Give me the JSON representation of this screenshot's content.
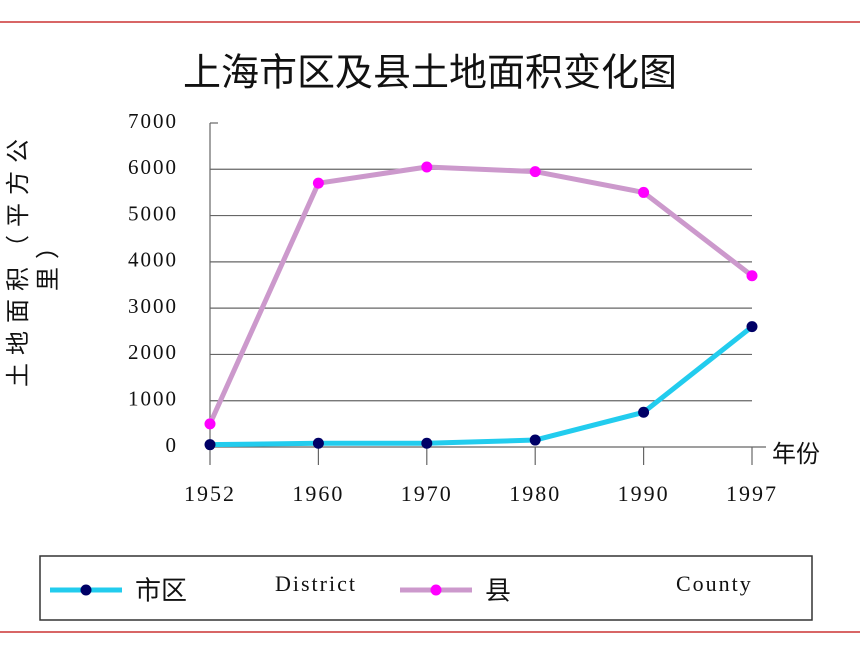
{
  "chart_data": {
    "type": "line",
    "title": "上海市区及县土地面积变化图",
    "y_label": "土地面积（平方公里）",
    "x_label": "年份",
    "categories": [
      "1952",
      "1960",
      "1970",
      "1980",
      "1990",
      "1997"
    ],
    "series": [
      {
        "name": "市区",
        "name_en": "District",
        "color": "#22ccee",
        "marker_color": "#000066",
        "values": [
          50,
          80,
          80,
          150,
          750,
          2600
        ]
      },
      {
        "name": "县",
        "name_en": "County",
        "color": "#cc99cc",
        "marker_color": "#ff00ff",
        "values": [
          500,
          5700,
          6050,
          5950,
          5500,
          3700
        ]
      }
    ],
    "ylim": [
      0,
      7000
    ],
    "yticks": [
      0,
      1000,
      2000,
      3000,
      4000,
      5000,
      6000,
      7000
    ],
    "grid": true
  }
}
